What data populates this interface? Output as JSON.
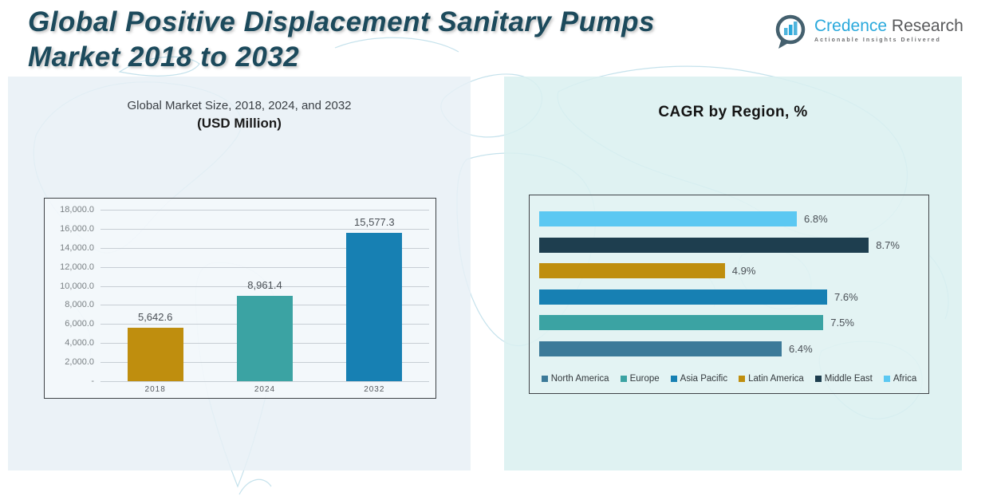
{
  "page": {
    "title_line1": "Global Positive Displacement Sanitary Pumps",
    "title_line2": "Market 2018 to 2032"
  },
  "logo": {
    "brand_primary": "Credence",
    "brand_secondary": "Research",
    "tagline": "Actionable Insights Delivered",
    "icon": "bar-chart-speech-bubble-icon",
    "primary_color": "#2aa9dc",
    "secondary_color": "#58595b"
  },
  "chart_data": [
    {
      "type": "bar",
      "orientation": "vertical",
      "title": "Global Market Size, 2018, 2024, and 2032",
      "subtitle": "(USD Million)",
      "categories": [
        "2018",
        "2024",
        "2032"
      ],
      "values": [
        5642.6,
        8961.4,
        15577.3
      ],
      "value_labels": [
        "5,642.6",
        "8,961.4",
        "15,577.3"
      ],
      "bar_colors": [
        "#bf8e0e",
        "#3ba3a3",
        "#1780b3"
      ],
      "ylabel": "",
      "xlabel": "",
      "ylim": [
        0,
        18000
      ],
      "ytick_values": [
        18000,
        16000,
        14000,
        12000,
        10000,
        8000,
        6000,
        4000,
        2000,
        0
      ],
      "ytick_labels": [
        "18,000.0",
        "16,000.0",
        "14,000.0",
        "12,000.0",
        "10,000.0",
        "8,000.0",
        "6,000.0",
        "4,000.0",
        "2,000.0",
        "-"
      ],
      "grid": true,
      "legend": "none"
    },
    {
      "type": "bar",
      "orientation": "horizontal",
      "title": "CAGR by Region, %",
      "categories_top_to_bottom": [
        "Africa",
        "Middle East",
        "Latin America",
        "Asia Pacific",
        "Europe",
        "North America"
      ],
      "values": [
        6.8,
        8.7,
        4.9,
        7.6,
        7.5,
        6.4
      ],
      "value_labels": [
        "6.8%",
        "8.7%",
        "4.9%",
        "7.6%",
        "7.5%",
        "6.4%"
      ],
      "bar_colors": [
        "#5bc8f2",
        "#1e3e4f",
        "#bf8e0e",
        "#1780b3",
        "#3ba3a3",
        "#3c7a99"
      ],
      "xlim": [
        0,
        10.3
      ],
      "grid": false,
      "legend_position": "bottom",
      "legend": [
        {
          "label": "North America",
          "color": "#3c7a99"
        },
        {
          "label": "Europe",
          "color": "#3ba3a3"
        },
        {
          "label": "Asia Pacific",
          "color": "#1780b3"
        },
        {
          "label": "Latin America",
          "color": "#bf8e0e"
        },
        {
          "label": "Middle East",
          "color": "#1e3e4f"
        },
        {
          "label": "Africa",
          "color": "#5bc8f2"
        }
      ]
    }
  ]
}
